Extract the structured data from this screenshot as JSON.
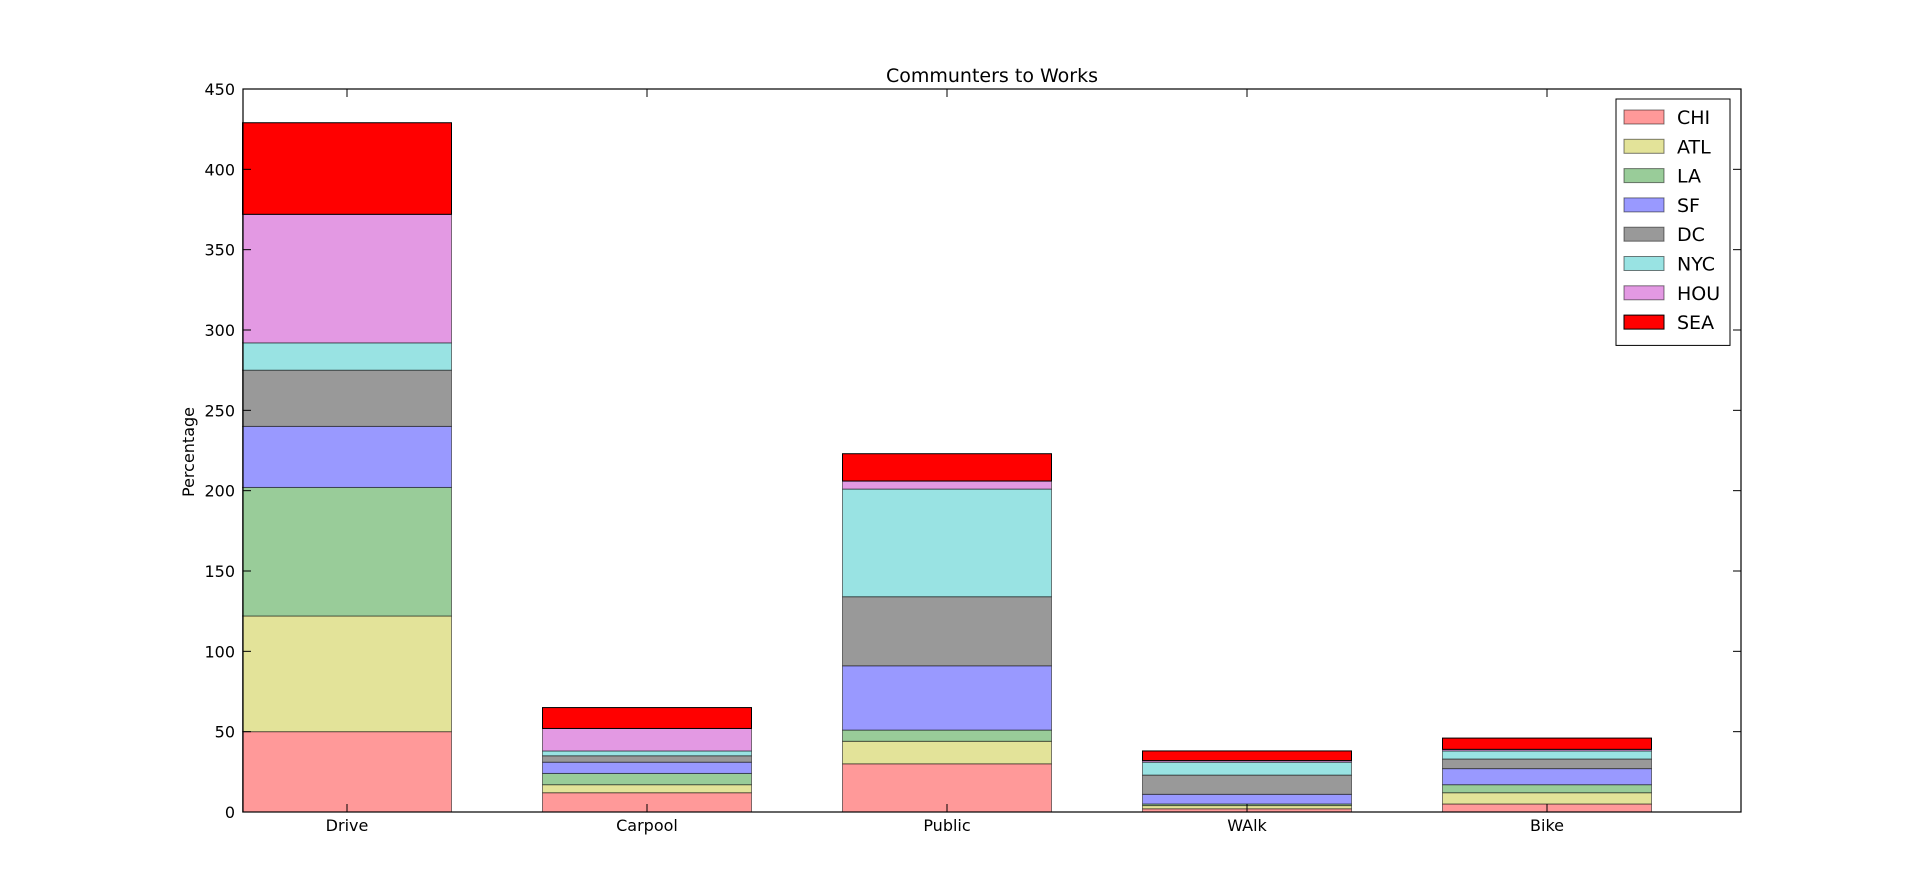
{
  "chart_data": {
    "type": "bar",
    "stacked": true,
    "title": "Communters to Works",
    "xlabel": "",
    "ylabel": "Percentage",
    "categories": [
      "Drive",
      "Carpool",
      "Public",
      "WAlk",
      "Bike"
    ],
    "ylim": [
      0,
      450
    ],
    "yticks": [
      0,
      50,
      100,
      150,
      200,
      250,
      300,
      350,
      400,
      450
    ],
    "grid": false,
    "legend_position": "top-right",
    "series": [
      {
        "name": "CHI",
        "color": "#ff9999",
        "values": [
          50,
          12,
          30,
          2,
          5
        ]
      },
      {
        "name": "ATL",
        "color": "#e3e399",
        "values": [
          72,
          5,
          14,
          2,
          7
        ]
      },
      {
        "name": "LA",
        "color": "#99cc99",
        "values": [
          80,
          7,
          7,
          1,
          5
        ]
      },
      {
        "name": "SF",
        "color": "#9999ff",
        "values": [
          38,
          7,
          40,
          6,
          10
        ]
      },
      {
        "name": "DC",
        "color": "#999999",
        "values": [
          35,
          4,
          43,
          12,
          6
        ]
      },
      {
        "name": "NYC",
        "color": "#99e3e3",
        "values": [
          17,
          3,
          67,
          8,
          5
        ]
      },
      {
        "name": "HOU",
        "color": "#e399e3",
        "values": [
          80,
          14,
          5,
          1,
          1
        ]
      },
      {
        "name": "SEA",
        "color": "#ff0000",
        "values": [
          57,
          13,
          17,
          6,
          7
        ]
      }
    ]
  }
}
